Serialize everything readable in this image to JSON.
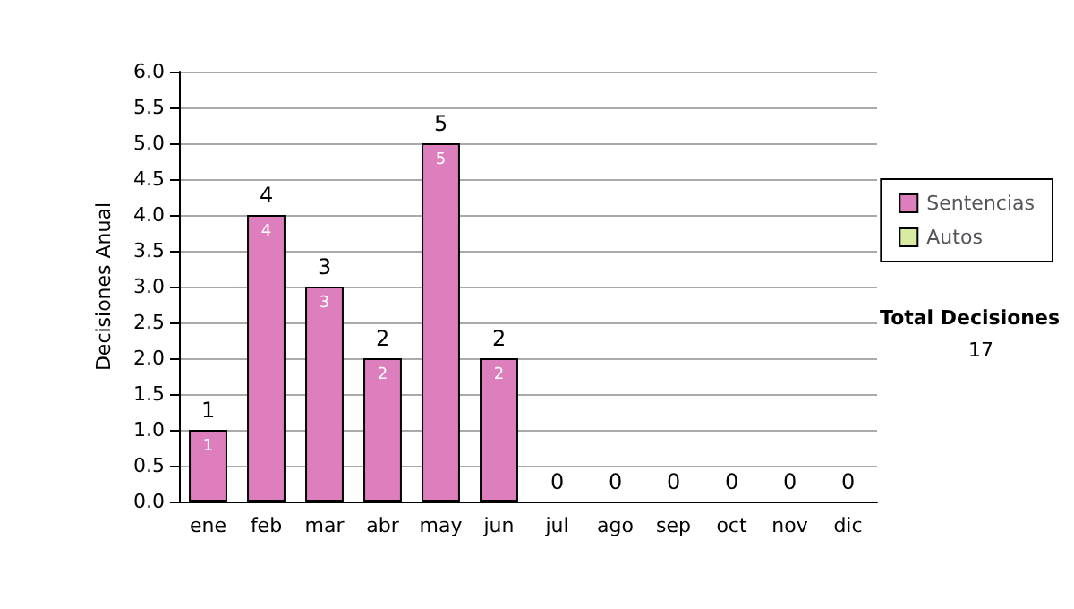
{
  "chart_data": {
    "type": "bar",
    "ylabel": "Decisiones Anual",
    "categories": [
      "ene",
      "feb",
      "mar",
      "abr",
      "may",
      "jun",
      "jul",
      "ago",
      "sep",
      "oct",
      "nov",
      "dic"
    ],
    "series": [
      {
        "name": "Sentencias",
        "color": "#dd7fbd",
        "values": [
          1,
          4,
          3,
          2,
          5,
          2,
          0,
          0,
          0,
          0,
          0,
          0
        ],
        "value_labels": [
          "1",
          "4",
          "3",
          "2",
          "5",
          "2",
          null,
          null,
          null,
          null,
          null,
          null
        ]
      },
      {
        "name": "Autos",
        "color": "#d9eba0",
        "values": [
          0,
          0,
          0,
          0,
          0,
          0,
          0,
          0,
          0,
          0,
          0,
          0
        ]
      }
    ],
    "stacked": true,
    "totals": [
      "1",
      "4",
      "3",
      "2",
      "5",
      "2",
      "0",
      "0",
      "0",
      "0",
      "0",
      "0"
    ],
    "ylim": [
      0,
      6
    ],
    "yticks": [
      {
        "value": 0,
        "label": "0.0"
      },
      {
        "value": 0.5,
        "label": "0.5"
      },
      {
        "value": 1,
        "label": "1.0"
      },
      {
        "value": 1.5,
        "label": "1.5"
      },
      {
        "value": 2,
        "label": "2.0"
      },
      {
        "value": 2.5,
        "label": "2.5"
      },
      {
        "value": 3,
        "label": "3.0"
      },
      {
        "value": 3.5,
        "label": "3.5"
      },
      {
        "value": 4,
        "label": "4.0"
      },
      {
        "value": 4.5,
        "label": "4.5"
      },
      {
        "value": 5,
        "label": "5.0"
      },
      {
        "value": 5.5,
        "label": "5.5"
      },
      {
        "value": 6,
        "label": "6.0"
      }
    ],
    "grid": "y",
    "legend": "right",
    "annotations": [
      "Total Decisiones",
      "17"
    ]
  }
}
